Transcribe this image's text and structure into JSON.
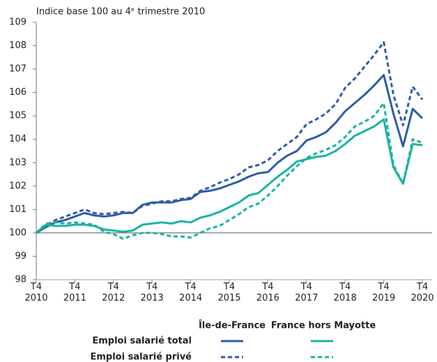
{
  "chart_data": {
    "type": "line",
    "title": "Indice base 100 au 4ᵉ trimestre 2010",
    "categories": [
      "T4\n2010",
      null,
      null,
      null,
      "T4\n2011",
      null,
      null,
      null,
      "T4\n2012",
      null,
      null,
      null,
      "T4\n2013",
      null,
      null,
      null,
      "T4\n2014",
      null,
      null,
      null,
      "T4\n2015",
      null,
      null,
      null,
      "T4\n2016",
      null,
      null,
      null,
      "T4\n2017",
      null,
      null,
      null,
      "T4\n2018",
      null,
      null,
      null,
      "T4\n2019",
      null,
      null,
      null,
      "T4\n2020"
    ],
    "ylim": [
      98,
      109
    ],
    "yticks": [
      98,
      99,
      100,
      101,
      102,
      103,
      104,
      105,
      106,
      107,
      108,
      109
    ],
    "reference_line": 100,
    "legend": {
      "columns": [
        "Île-de-France",
        "France hors Mayotte"
      ],
      "rows": [
        "Emploi salarié total",
        "Emploi salarié privé"
      ]
    },
    "series": [
      {
        "column": 0,
        "row": 0,
        "color": "#2e5ca8",
        "dashed": false,
        "values": [
          100.0,
          100.25,
          100.45,
          100.55,
          100.7,
          100.85,
          100.75,
          100.7,
          100.75,
          100.85,
          100.85,
          101.2,
          101.3,
          101.3,
          101.3,
          101.4,
          101.45,
          101.75,
          101.8,
          101.9,
          102.05,
          102.2,
          102.4,
          102.55,
          102.6,
          103.0,
          103.3,
          103.5,
          103.95,
          104.1,
          104.3,
          104.7,
          105.2,
          105.55,
          105.9,
          106.3,
          106.75,
          105.1,
          103.7,
          105.3,
          104.9
        ]
      },
      {
        "column": 0,
        "row": 1,
        "color": "#2e5ca8",
        "dashed": true,
        "values": [
          100.0,
          100.3,
          100.55,
          100.7,
          100.85,
          101.0,
          100.85,
          100.8,
          100.85,
          100.9,
          100.85,
          101.15,
          101.25,
          101.35,
          101.35,
          101.45,
          101.5,
          101.8,
          101.95,
          102.15,
          102.3,
          102.5,
          102.8,
          102.9,
          103.1,
          103.5,
          103.8,
          104.1,
          104.65,
          104.85,
          105.1,
          105.5,
          106.2,
          106.6,
          107.1,
          107.6,
          108.15,
          105.9,
          104.6,
          106.25,
          105.7
        ]
      },
      {
        "column": 1,
        "row": 0,
        "color": "#1bb3a0",
        "dashed": false,
        "values": [
          100.0,
          100.35,
          100.3,
          100.3,
          100.35,
          100.35,
          100.3,
          100.15,
          100.1,
          100.05,
          100.1,
          100.35,
          100.4,
          100.45,
          100.4,
          100.5,
          100.45,
          100.65,
          100.75,
          100.9,
          101.1,
          101.3,
          101.6,
          101.7,
          102.05,
          102.4,
          102.7,
          103.05,
          103.15,
          103.25,
          103.3,
          103.5,
          103.8,
          104.15,
          104.35,
          104.55,
          104.85,
          102.8,
          102.1,
          103.8,
          103.75
        ]
      },
      {
        "column": 1,
        "row": 1,
        "color": "#1bb3a0",
        "dashed": true,
        "values": [
          100.0,
          100.4,
          100.45,
          100.4,
          100.45,
          100.4,
          100.35,
          100.05,
          99.95,
          99.75,
          99.9,
          100.0,
          100.0,
          99.95,
          99.85,
          99.85,
          99.8,
          100.0,
          100.2,
          100.3,
          100.55,
          100.8,
          101.1,
          101.25,
          101.6,
          102.0,
          102.45,
          102.85,
          103.2,
          103.4,
          103.55,
          103.75,
          104.1,
          104.55,
          104.75,
          105.0,
          105.55,
          102.9,
          102.1,
          104.0,
          103.85
        ]
      }
    ]
  }
}
